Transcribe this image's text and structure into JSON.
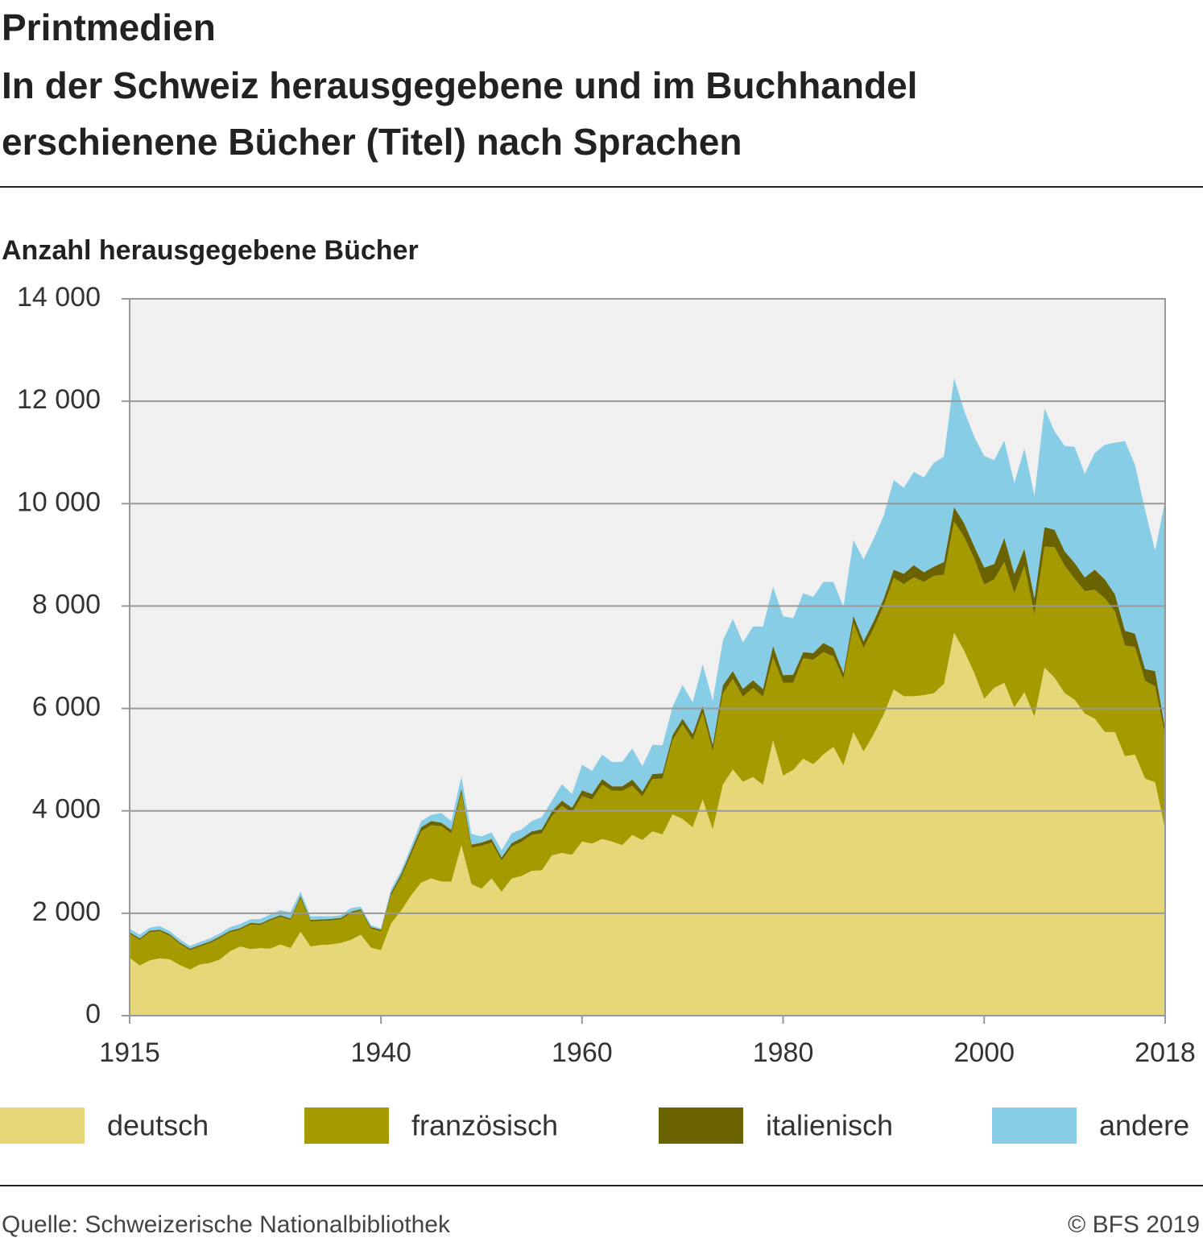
{
  "chart_data": {
    "type": "stacked_area",
    "title": "Printmedien",
    "subtitle": [
      "In der Schweiz herausgegebene und im Buchhandel",
      "erschienene Bücher (Titel) nach Sprachen"
    ],
    "y_label": "Anzahl herausgegebene Bücher",
    "source": "Quelle: Schweizerische Nationalbibliothek",
    "credit": "© BFS 2019",
    "x": [
      1915,
      1916,
      1917,
      1918,
      1919,
      1920,
      1921,
      1922,
      1923,
      1924,
      1925,
      1926,
      1927,
      1928,
      1929,
      1930,
      1931,
      1932,
      1933,
      1934,
      1935,
      1936,
      1937,
      1938,
      1939,
      1940,
      1941,
      1942,
      1943,
      1944,
      1945,
      1946,
      1947,
      1948,
      1949,
      1950,
      1951,
      1952,
      1953,
      1954,
      1955,
      1956,
      1957,
      1958,
      1959,
      1960,
      1961,
      1962,
      1963,
      1964,
      1965,
      1966,
      1967,
      1968,
      1969,
      1970,
      1971,
      1972,
      1973,
      1974,
      1975,
      1976,
      1977,
      1978,
      1979,
      1980,
      1981,
      1982,
      1983,
      1984,
      1985,
      1986,
      1987,
      1988,
      1989,
      1990,
      1991,
      1992,
      1993,
      1994,
      1995,
      1996,
      1997,
      1998,
      1999,
      2000,
      2001,
      2002,
      2003,
      2004,
      2005,
      2006,
      2007,
      2008,
      2009,
      2010,
      2011,
      2012,
      2013,
      2014,
      2015,
      2016,
      2017,
      2018
    ],
    "series": [
      {
        "name": "deutsch",
        "color": "#e6d878",
        "values": [
          1130,
          980,
          1080,
          1120,
          1100,
          990,
          900,
          1000,
          1030,
          1100,
          1260,
          1350,
          1300,
          1320,
          1310,
          1390,
          1320,
          1640,
          1350,
          1380,
          1390,
          1420,
          1480,
          1580,
          1330,
          1280,
          1800,
          2050,
          2350,
          2600,
          2680,
          2620,
          2620,
          3330,
          2570,
          2480,
          2680,
          2420,
          2680,
          2730,
          2830,
          2840,
          3130,
          3180,
          3140,
          3400,
          3360,
          3450,
          3400,
          3330,
          3530,
          3430,
          3600,
          3540,
          3930,
          3840,
          3680,
          4220,
          3640,
          4510,
          4810,
          4570,
          4660,
          4510,
          5380,
          4690,
          4800,
          5020,
          4910,
          5100,
          5250,
          4890,
          5540,
          5160,
          5490,
          5880,
          6370,
          6240,
          6240,
          6260,
          6300,
          6480,
          7480,
          7130,
          6700,
          6190,
          6400,
          6500,
          6020,
          6320,
          5840,
          6800,
          6600,
          6300,
          6170,
          5900,
          5800,
          5540,
          5540,
          5070,
          5100,
          4630,
          4560,
          3640
        ]
      },
      {
        "name": "französisch",
        "color": "#a59b00",
        "values": [
          470,
          500,
          550,
          530,
          460,
          410,
          380,
          350,
          390,
          420,
          370,
          330,
          480,
          450,
          550,
          540,
          550,
          660,
          490,
          470,
          470,
          460,
          520,
          470,
          370,
          370,
          550,
          650,
          800,
          1000,
          1040,
          1080,
          940,
          1020,
          710,
          840,
          700,
          610,
          620,
          670,
          700,
          720,
          770,
          920,
          820,
          890,
          860,
          1060,
          990,
          1060,
          960,
          850,
          1020,
          1090,
          1450,
          1850,
          1700,
          1700,
          1520,
          1780,
          1770,
          1660,
          1740,
          1720,
          1620,
          1810,
          1700,
          1960,
          2040,
          2000,
          1770,
          1690,
          2120,
          2020,
          2070,
          2120,
          2180,
          2190,
          2320,
          2210,
          2290,
          2130,
          2170,
          2220,
          2230,
          2230,
          2120,
          2360,
          2230,
          2460,
          2000,
          2360,
          2550,
          2490,
          2360,
          2390,
          2520,
          2610,
          2360,
          2160,
          2100,
          1910,
          1870,
          1840
        ]
      },
      {
        "name": "italienisch",
        "color": "#6b6200",
        "values": [
          30,
          30,
          30,
          30,
          30,
          30,
          30,
          30,
          30,
          30,
          30,
          30,
          30,
          30,
          30,
          30,
          30,
          40,
          30,
          30,
          30,
          30,
          30,
          30,
          30,
          30,
          50,
          60,
          70,
          80,
          80,
          70,
          70,
          80,
          60,
          60,
          70,
          60,
          70,
          70,
          70,
          80,
          90,
          100,
          100,
          110,
          110,
          110,
          90,
          90,
          120,
          100,
          100,
          100,
          100,
          110,
          120,
          130,
          130,
          160,
          150,
          150,
          150,
          150,
          220,
          150,
          160,
          120,
          130,
          180,
          160,
          110,
          150,
          130,
          140,
          140,
          160,
          200,
          240,
          190,
          180,
          250,
          280,
          270,
          240,
          330,
          300,
          470,
          380,
          340,
          310,
          380,
          340,
          280,
          310,
          270,
          390,
          370,
          330,
          290,
          260,
          230,
          300,
          120
        ]
      },
      {
        "name": "andere",
        "color": "#87cde6",
        "values": [
          70,
          70,
          60,
          70,
          60,
          60,
          50,
          60,
          60,
          60,
          70,
          80,
          70,
          90,
          90,
          100,
          120,
          80,
          70,
          60,
          50,
          50,
          70,
          50,
          40,
          20,
          70,
          70,
          80,
          120,
          120,
          190,
          170,
          240,
          210,
          120,
          130,
          140,
          190,
          170,
          200,
          240,
          210,
          320,
          270,
          500,
          450,
          480,
          470,
          480,
          610,
          490,
          570,
          550,
          550,
          660,
          620,
          810,
          860,
          870,
          1020,
          910,
          1050,
          1220,
          1160,
          1150,
          1100,
          1150,
          1100,
          1190,
          1290,
          1300,
          1480,
          1600,
          1610,
          1620,
          1750,
          1680,
          1820,
          1850,
          2030,
          2060,
          2520,
          2200,
          2140,
          2180,
          2030,
          1900,
          1770,
          1960,
          2000,
          2320,
          1920,
          2060,
          2270,
          2020,
          2280,
          2630,
          2960,
          3700,
          3300,
          3110,
          2350,
          4460
        ]
      }
    ],
    "xlim": [
      1915,
      2018
    ],
    "xticks": [
      1915,
      1940,
      1960,
      1980,
      2000,
      2018
    ],
    "ylim": [
      0,
      14000
    ],
    "yticks": [
      0,
      {
        "value": 2000,
        "label": "2 000"
      },
      {
        "value": 4000,
        "label": "4 000"
      },
      {
        "value": 6000,
        "label": "6 000"
      },
      {
        "value": 8000,
        "label": "8 000"
      },
      {
        "value": 10000,
        "label": "10 000"
      },
      {
        "value": 12000,
        "label": "12 000"
      },
      {
        "value": 14000,
        "label": "14 000"
      }
    ],
    "grid": true,
    "legend": "bottom"
  }
}
